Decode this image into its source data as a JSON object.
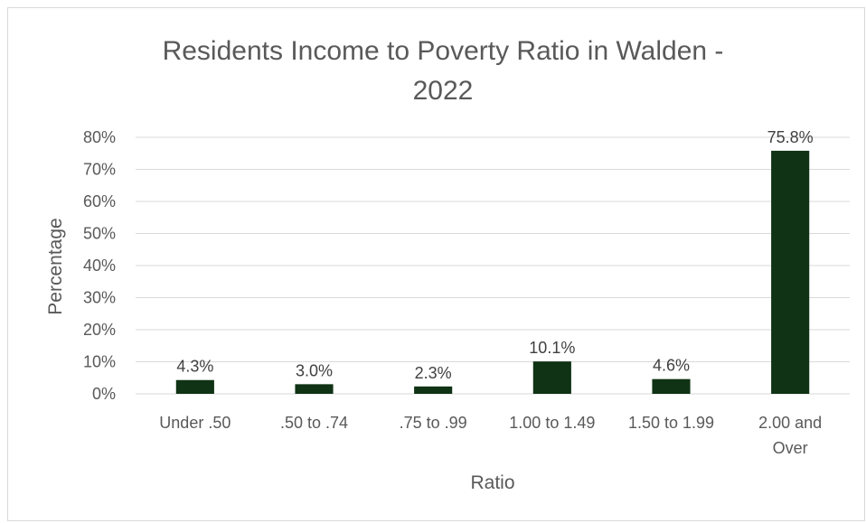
{
  "chart_data": {
    "type": "bar",
    "title_lines": [
      "Residents Income to Poverty Ratio in Walden -",
      "2022"
    ],
    "xlabel": "Ratio",
    "ylabel": "Percentage",
    "ylim": [
      0,
      80
    ],
    "y_ticks": [
      "0%",
      "10%",
      "20%",
      "30%",
      "40%",
      "50%",
      "60%",
      "70%",
      "80%"
    ],
    "categories": [
      [
        "Under .50"
      ],
      [
        ".50 to .74"
      ],
      [
        ".75 to .99"
      ],
      [
        "1.00 to 1.49"
      ],
      [
        "1.50 to 1.99"
      ],
      [
        "2.00 and",
        "Over"
      ]
    ],
    "values": [
      4.3,
      3.0,
      2.3,
      10.1,
      4.6,
      75.8
    ],
    "data_labels": [
      "4.3%",
      "3.0%",
      "2.3%",
      "10.1%",
      "4.6%",
      "75.8%"
    ],
    "bar_color": "#0f3314",
    "grid": true,
    "legend": "none"
  }
}
